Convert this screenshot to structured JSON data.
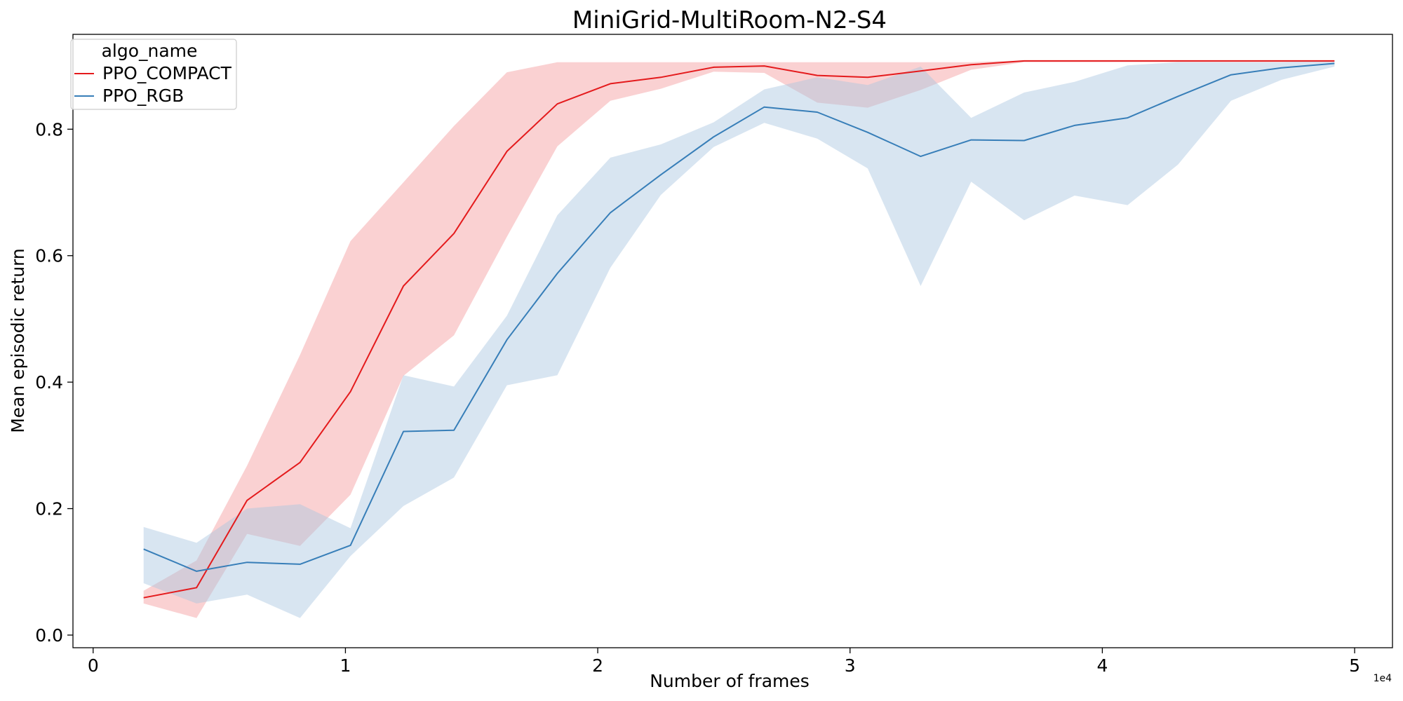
{
  "chart_data": {
    "type": "line",
    "title": "MiniGrid-MultiRoom-N2-S4",
    "xlabel": "Number of frames",
    "ylabel": "Mean episodic return",
    "x_offset_label": "1e4",
    "xlim": [
      -0.08,
      5.15
    ],
    "ylim": [
      -0.02,
      0.95
    ],
    "xticks": [
      0,
      1,
      2,
      3,
      4,
      5
    ],
    "xtick_labels": [
      "0",
      "1",
      "2",
      "3",
      "4",
      "5"
    ],
    "yticks": [
      0.0,
      0.2,
      0.4,
      0.6,
      0.8
    ],
    "ytick_labels": [
      "0.0",
      "0.2",
      "0.4",
      "0.6",
      "0.8"
    ],
    "grid": false,
    "legend": {
      "title": "algo_name",
      "placement": "top-left"
    },
    "x": [
      0.2,
      0.41,
      0.61,
      0.82,
      1.02,
      1.23,
      1.43,
      1.64,
      1.84,
      2.05,
      2.25,
      2.46,
      2.66,
      2.87,
      3.07,
      3.28,
      3.48,
      3.69,
      3.89,
      4.1,
      4.3,
      4.51,
      4.71,
      4.92
    ],
    "series": [
      {
        "name": "PPO_COMPACT",
        "color": "#e41a1c",
        "band_color": "#f5a3a5",
        "values": [
          0.059,
          0.075,
          0.213,
          0.273,
          0.385,
          0.552,
          0.635,
          0.765,
          0.84,
          0.872,
          0.882,
          0.898,
          0.9,
          0.885,
          0.882,
          0.892,
          0.902,
          0.908,
          0.908,
          0.908,
          0.908,
          0.908,
          0.908,
          0.908
        ],
        "lower": [
          0.05,
          0.027,
          0.16,
          0.141,
          0.222,
          0.41,
          0.474,
          0.63,
          0.773,
          0.845,
          0.864,
          0.891,
          0.889,
          0.842,
          0.834,
          0.862,
          0.894,
          0.906,
          0.906,
          0.906,
          0.906,
          0.906,
          0.906,
          0.906
        ],
        "upper": [
          0.07,
          0.118,
          0.268,
          0.443,
          0.623,
          0.716,
          0.805,
          0.89,
          0.906,
          0.906,
          0.906,
          0.906,
          0.906,
          0.906,
          0.906,
          0.906,
          0.906,
          0.909,
          0.909,
          0.909,
          0.909,
          0.909,
          0.909,
          0.909
        ]
      },
      {
        "name": "PPO_RGB",
        "color": "#377eb8",
        "band_color": "#a9c5e0",
        "values": [
          0.136,
          0.101,
          0.115,
          0.112,
          0.142,
          0.322,
          0.324,
          0.467,
          0.572,
          0.668,
          0.728,
          0.788,
          0.835,
          0.827,
          0.795,
          0.757,
          0.783,
          0.782,
          0.806,
          0.818,
          0.852,
          0.886,
          0.897,
          0.904
        ],
        "lower": [
          0.082,
          0.05,
          0.064,
          0.027,
          0.125,
          0.204,
          0.249,
          0.395,
          0.411,
          0.581,
          0.696,
          0.772,
          0.81,
          0.785,
          0.738,
          0.552,
          0.717,
          0.656,
          0.695,
          0.68,
          0.744,
          0.845,
          0.878,
          0.899
        ],
        "upper": [
          0.171,
          0.146,
          0.2,
          0.207,
          0.169,
          0.411,
          0.393,
          0.505,
          0.664,
          0.755,
          0.776,
          0.811,
          0.863,
          0.882,
          0.87,
          0.899,
          0.818,
          0.858,
          0.875,
          0.901,
          0.906,
          0.906,
          0.906,
          0.909
        ]
      }
    ]
  }
}
